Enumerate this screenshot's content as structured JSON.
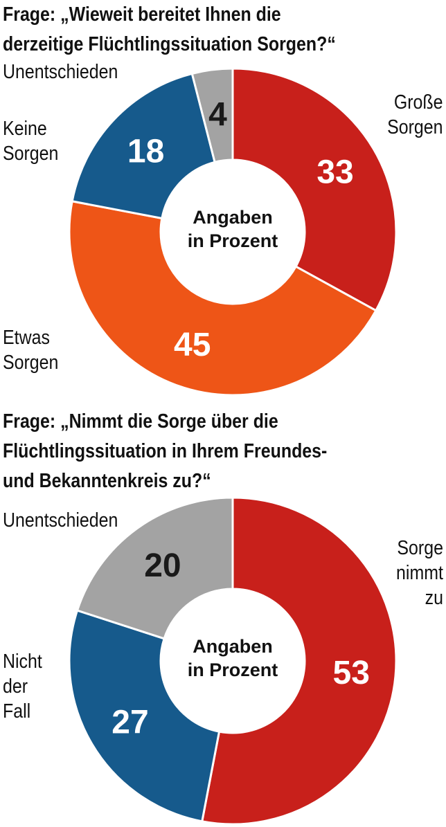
{
  "chart_data": [
    {
      "type": "pie",
      "title_lines": [
        "Frage: „Wieweit bereitet Ihnen die",
        "derzeitige Flüchtlingssituation Sorgen?“"
      ],
      "center_label_lines": [
        "Angaben",
        "in Prozent"
      ],
      "slices": [
        {
          "value": 33,
          "label_lines": [
            "Große",
            "Sorgen"
          ],
          "color": "#c8201b",
          "value_color": "#ffffff"
        },
        {
          "value": 45,
          "label_lines": [
            "Etwas",
            "Sorgen"
          ],
          "color": "#ee5517",
          "value_color": "#ffffff"
        },
        {
          "value": 18,
          "label_lines": [
            "Keine",
            "Sorgen"
          ],
          "color": "#165a8c",
          "value_color": "#ffffff"
        },
        {
          "value": 4,
          "label_lines": [
            "Unentschieden"
          ],
          "color": "#a3a3a3",
          "value_color": "#1a1a1a"
        }
      ]
    },
    {
      "type": "pie",
      "title_lines": [
        "Frage: „Nimmt die Sorge über die",
        "Flüchtlingssituation in Ihrem Freundes-",
        "und Bekanntenkreis zu?“"
      ],
      "center_label_lines": [
        "Angaben",
        "in Prozent"
      ],
      "slices": [
        {
          "value": 53,
          "label_lines": [
            "Sorge",
            "nimmt",
            "zu"
          ],
          "color": "#c8201b",
          "value_color": "#ffffff"
        },
        {
          "value": 27,
          "label_lines": [
            "Nicht",
            "der",
            "Fall"
          ],
          "color": "#165a8c",
          "value_color": "#ffffff"
        },
        {
          "value": 20,
          "label_lines": [
            "Unentschieden"
          ],
          "color": "#a3a3a3",
          "value_color": "#1a1a1a"
        }
      ]
    }
  ]
}
